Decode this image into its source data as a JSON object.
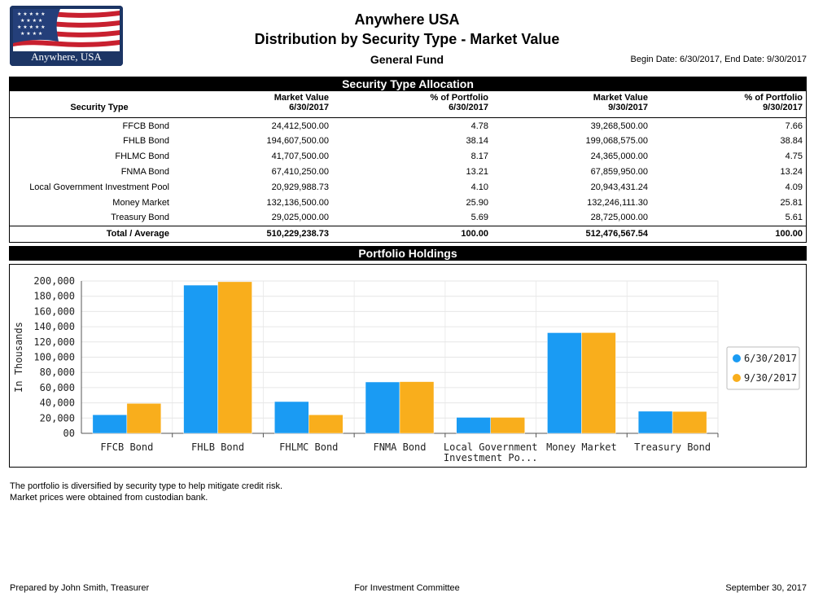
{
  "header": {
    "logo_text": "Anywhere, USA",
    "title": "Anywhere USA",
    "subtitle": "Distribution by Security Type - Market Value",
    "fund": "General Fund",
    "date_range": "Begin Date: 6/30/2017, End Date: 9/30/2017"
  },
  "allocation": {
    "section_title": "Security Type Allocation",
    "headers": {
      "type": "Security Type",
      "mv1_a": "Market Value",
      "mv1_b": "6/30/2017",
      "pct1_a": "% of Portfolio",
      "pct1_b": "6/30/2017",
      "mv2_a": "Market Value",
      "mv2_b": "9/30/2017",
      "pct2_a": "% of Portfolio",
      "pct2_b": "9/30/2017"
    },
    "rows": [
      {
        "type": "FFCB Bond",
        "mv1": "24,412,500.00",
        "pct1": "4.78",
        "mv2": "39,268,500.00",
        "pct2": "7.66"
      },
      {
        "type": "FHLB Bond",
        "mv1": "194,607,500.00",
        "pct1": "38.14",
        "mv2": "199,068,575.00",
        "pct2": "38.84"
      },
      {
        "type": "FHLMC Bond",
        "mv1": "41,707,500.00",
        "pct1": "8.17",
        "mv2": "24,365,000.00",
        "pct2": "4.75"
      },
      {
        "type": "FNMA Bond",
        "mv1": "67,410,250.00",
        "pct1": "13.21",
        "mv2": "67,859,950.00",
        "pct2": "13.24"
      },
      {
        "type": "Local Government Investment Pool",
        "mv1": "20,929,988.73",
        "pct1": "4.10",
        "mv2": "20,943,431.24",
        "pct2": "4.09"
      },
      {
        "type": "Money Market",
        "mv1": "132,136,500.00",
        "pct1": "25.90",
        "mv2": "132,246,111.30",
        "pct2": "25.81"
      },
      {
        "type": "Treasury Bond",
        "mv1": "29,025,000.00",
        "pct1": "5.69",
        "mv2": "28,725,000.00",
        "pct2": "5.61"
      }
    ],
    "total": {
      "type": "Total / Average",
      "mv1": "510,229,238.73",
      "pct1": "100.00",
      "mv2": "512,476,567.54",
      "pct2": "100.00"
    }
  },
  "chart_section_title": "Portfolio Holdings",
  "chart_data": {
    "type": "bar",
    "title": "",
    "xlabel": "",
    "ylabel": "In Thousands",
    "ylim": [
      0,
      200000
    ],
    "yticks": [
      0,
      20000,
      40000,
      60000,
      80000,
      100000,
      120000,
      140000,
      160000,
      180000,
      200000
    ],
    "ytick_labels": [
      "00",
      "20,000",
      "40,000",
      "60,000",
      "80,000",
      "100,000",
      "120,000",
      "140,000",
      "160,000",
      "180,000",
      "200,000"
    ],
    "categories": [
      "FFCB Bond",
      "FHLB Bond",
      "FHLMC Bond",
      "FNMA Bond",
      "Local Government Investment Po...",
      "Money Market",
      "Treasury Bond"
    ],
    "category_lines": [
      [
        "FFCB Bond"
      ],
      [
        "FHLB Bond"
      ],
      [
        "FHLMC Bond"
      ],
      [
        "FNMA Bond"
      ],
      [
        "Local Government",
        "Investment Po..."
      ],
      [
        "Money Market"
      ],
      [
        "Treasury Bond"
      ]
    ],
    "series": [
      {
        "name": "6/30/2017",
        "color": "#1a9bf3",
        "values": [
          24412.5,
          194607.5,
          41707.5,
          67410.25,
          20929.99,
          132136.5,
          29025.0
        ]
      },
      {
        "name": "9/30/2017",
        "color": "#f9ae1c",
        "values": [
          39268.5,
          199068.58,
          24365.0,
          67859.95,
          20943.43,
          132246.11,
          28725.0
        ]
      }
    ],
    "grid": true,
    "legend_position": "right"
  },
  "notes": {
    "line1": "The portfolio is diversified by security type to help mitigate credit risk.",
    "line2": "Market prices were obtained from custodian bank."
  },
  "footer": {
    "prepared_by": "Prepared by John Smith, Treasurer",
    "audience": "For Investment Committee",
    "date": "September 30, 2017"
  }
}
